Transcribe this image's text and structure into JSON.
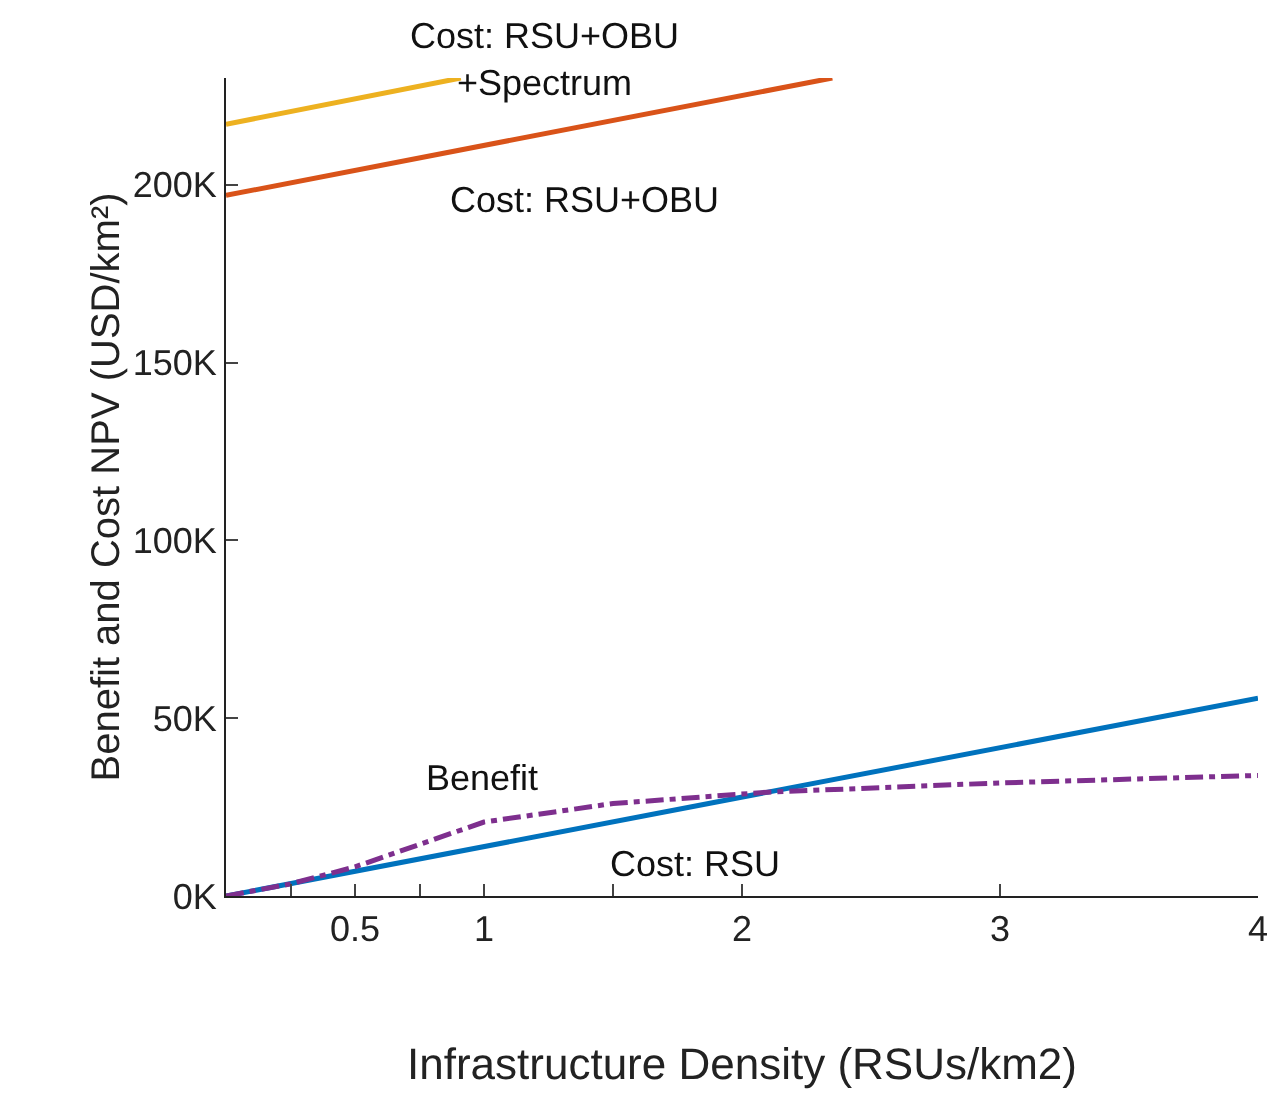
{
  "chart_data": {
    "type": "line",
    "xlabel": "Infrastructure Density (RSUs/km2)",
    "ylabel": "Benefit and Cost NPV (USD/km²)",
    "xlim": [
      0,
      4
    ],
    "xticks": [
      {
        "value": 0.25,
        "label": null
      },
      0.5,
      {
        "value": 0.75,
        "label": null
      },
      1,
      {
        "value": 1.5,
        "label": null
      },
      2,
      3,
      4
    ],
    "ylim": [
      0,
      230000
    ],
    "yticks": [
      {
        "value": 0,
        "label": "0K"
      },
      {
        "value": 50000,
        "label": "50K"
      },
      {
        "value": 100000,
        "label": "100K"
      },
      {
        "value": 150000,
        "label": "150K"
      },
      {
        "value": 200000,
        "label": "200K"
      }
    ],
    "grid": false,
    "legend": false,
    "marker": "none",
    "series": [
      {
        "name": "Cost: RSU+OBU\n+Spectrum",
        "color": "#edb120",
        "x": [
          0,
          0.91
        ],
        "values": [
          217000,
          230000
        ],
        "line_style": "solid"
      },
      {
        "name": "Cost: RSU+OBU",
        "color": "#d95319",
        "x": [
          0,
          2.35
        ],
        "values": [
          197000,
          230000
        ],
        "line_style": "solid"
      },
      {
        "name": "Cost: RSU",
        "color": "#0072bd",
        "x": [
          0,
          4
        ],
        "values": [
          0,
          55600
        ],
        "line_style": "solid"
      },
      {
        "name": "Benefit",
        "color": "#7e2f8e",
        "x": [
          0,
          0.25,
          0.5,
          1,
          1.5,
          2.1,
          3,
          4
        ],
        "values": [
          0,
          3400,
          8200,
          20800,
          26000,
          29200,
          31800,
          33900
        ],
        "line_style": "dashdot"
      }
    ]
  }
}
